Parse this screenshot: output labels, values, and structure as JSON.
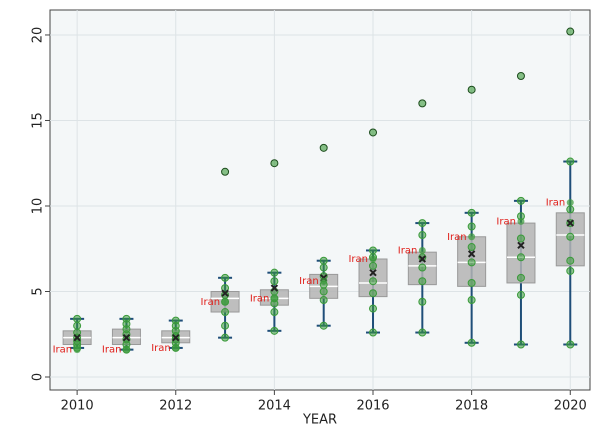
{
  "chart_data": {
    "type": "box",
    "xlabel": "YEAR",
    "x": [
      2010,
      2011,
      2012,
      2013,
      2014,
      2015,
      2016,
      2017,
      2018,
      2019,
      2020
    ],
    "xlim": [
      2009.45,
      2020.4
    ],
    "xticks": [
      2010,
      2012,
      2014,
      2016,
      2018,
      2020
    ],
    "ylim": [
      -0.76,
      21.46
    ],
    "yticks": [
      0,
      5,
      10,
      15,
      20
    ],
    "grid": true,
    "box_color": "#b4b4b4",
    "whisker_color": "#1f4e79",
    "point_color": "#3a9a3a",
    "label_color": "#e0201b",
    "min": [
      1.7,
      1.6,
      1.7,
      2.3,
      2.7,
      3.0,
      2.6,
      2.6,
      2.0,
      1.9,
      1.9
    ],
    "q1": [
      1.9,
      1.9,
      2.0,
      3.8,
      4.2,
      4.6,
      4.7,
      5.4,
      5.3,
      5.5,
      6.5
    ],
    "median": [
      2.3,
      2.3,
      2.3,
      4.6,
      4.6,
      5.3,
      5.5,
      6.5,
      6.7,
      7.0,
      8.3
    ],
    "q3": [
      2.7,
      2.8,
      2.7,
      5.0,
      5.1,
      6.0,
      6.9,
      7.3,
      8.2,
      9.0,
      9.6
    ],
    "max": [
      3.4,
      3.4,
      3.3,
      5.8,
      6.1,
      6.8,
      7.4,
      9.0,
      9.6,
      10.3,
      12.6
    ],
    "mean": [
      2.3,
      2.3,
      2.3,
      4.9,
      5.2,
      5.8,
      6.1,
      6.9,
      7.2,
      7.7,
      9.0
    ],
    "outliers": [
      null,
      null,
      null,
      12.0,
      12.5,
      13.4,
      14.3,
      16.0,
      16.8,
      17.6,
      20.2
    ],
    "points": [
      [
        1.7,
        1.9,
        2.1,
        2.3,
        2.6,
        3.0,
        3.4
      ],
      [
        1.6,
        1.9,
        2.2,
        2.5,
        2.8,
        3.1,
        3.4
      ],
      [
        1.7,
        2.0,
        2.2,
        2.4,
        2.7,
        3.0,
        3.3
      ],
      [
        2.3,
        3.0,
        3.8,
        4.4,
        4.8,
        5.2,
        5.8
      ],
      [
        2.7,
        3.8,
        4.3,
        4.6,
        5.0,
        5.6,
        6.1
      ],
      [
        3.0,
        4.5,
        5.0,
        5.4,
        5.9,
        6.4,
        6.8
      ],
      [
        2.6,
        4.0,
        4.9,
        5.6,
        6.5,
        7.0,
        7.4
      ],
      [
        2.6,
        4.4,
        5.6,
        6.4,
        7.0,
        8.3,
        9.0
      ],
      [
        2.0,
        4.5,
        5.5,
        6.7,
        7.6,
        8.8,
        9.6
      ],
      [
        1.9,
        4.8,
        5.8,
        7.0,
        8.1,
        9.4,
        10.3
      ],
      [
        1.9,
        6.2,
        6.8,
        8.2,
        9.0,
        9.8,
        12.6
      ]
    ],
    "highlight": {
      "name": "Iran",
      "values": [
        1.6,
        1.6,
        1.7,
        4.4,
        4.6,
        5.6,
        6.9,
        7.4,
        8.2,
        9.1,
        10.2
      ]
    }
  }
}
